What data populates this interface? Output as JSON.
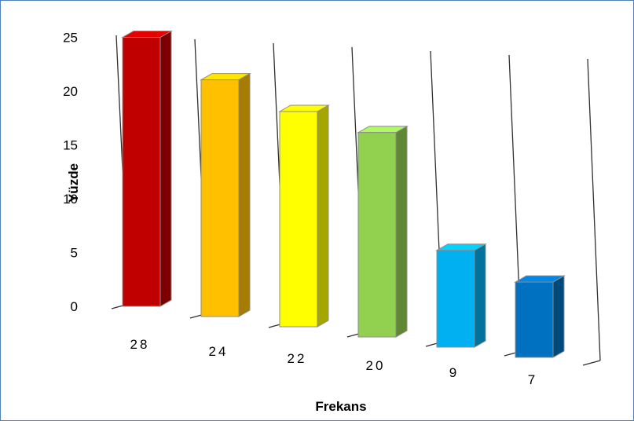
{
  "chart_data": {
    "type": "bar",
    "title": "",
    "xlabel": "Frekans",
    "ylabel": "Yüzde",
    "categories": [
      "28",
      "24",
      "22",
      "20",
      "9",
      "7"
    ],
    "values": [
      25,
      22,
      20,
      19,
      9,
      7
    ],
    "ylim": [
      0,
      25
    ],
    "yticks": [
      "0",
      "5",
      "10",
      "15",
      "20",
      "25"
    ],
    "grid": false,
    "legend": "none",
    "colors": [
      "#c00000",
      "#ffc000",
      "#ffff00",
      "#92d050",
      "#00b0f0",
      "#0070c0"
    ],
    "border_color": "#4f81bd"
  }
}
